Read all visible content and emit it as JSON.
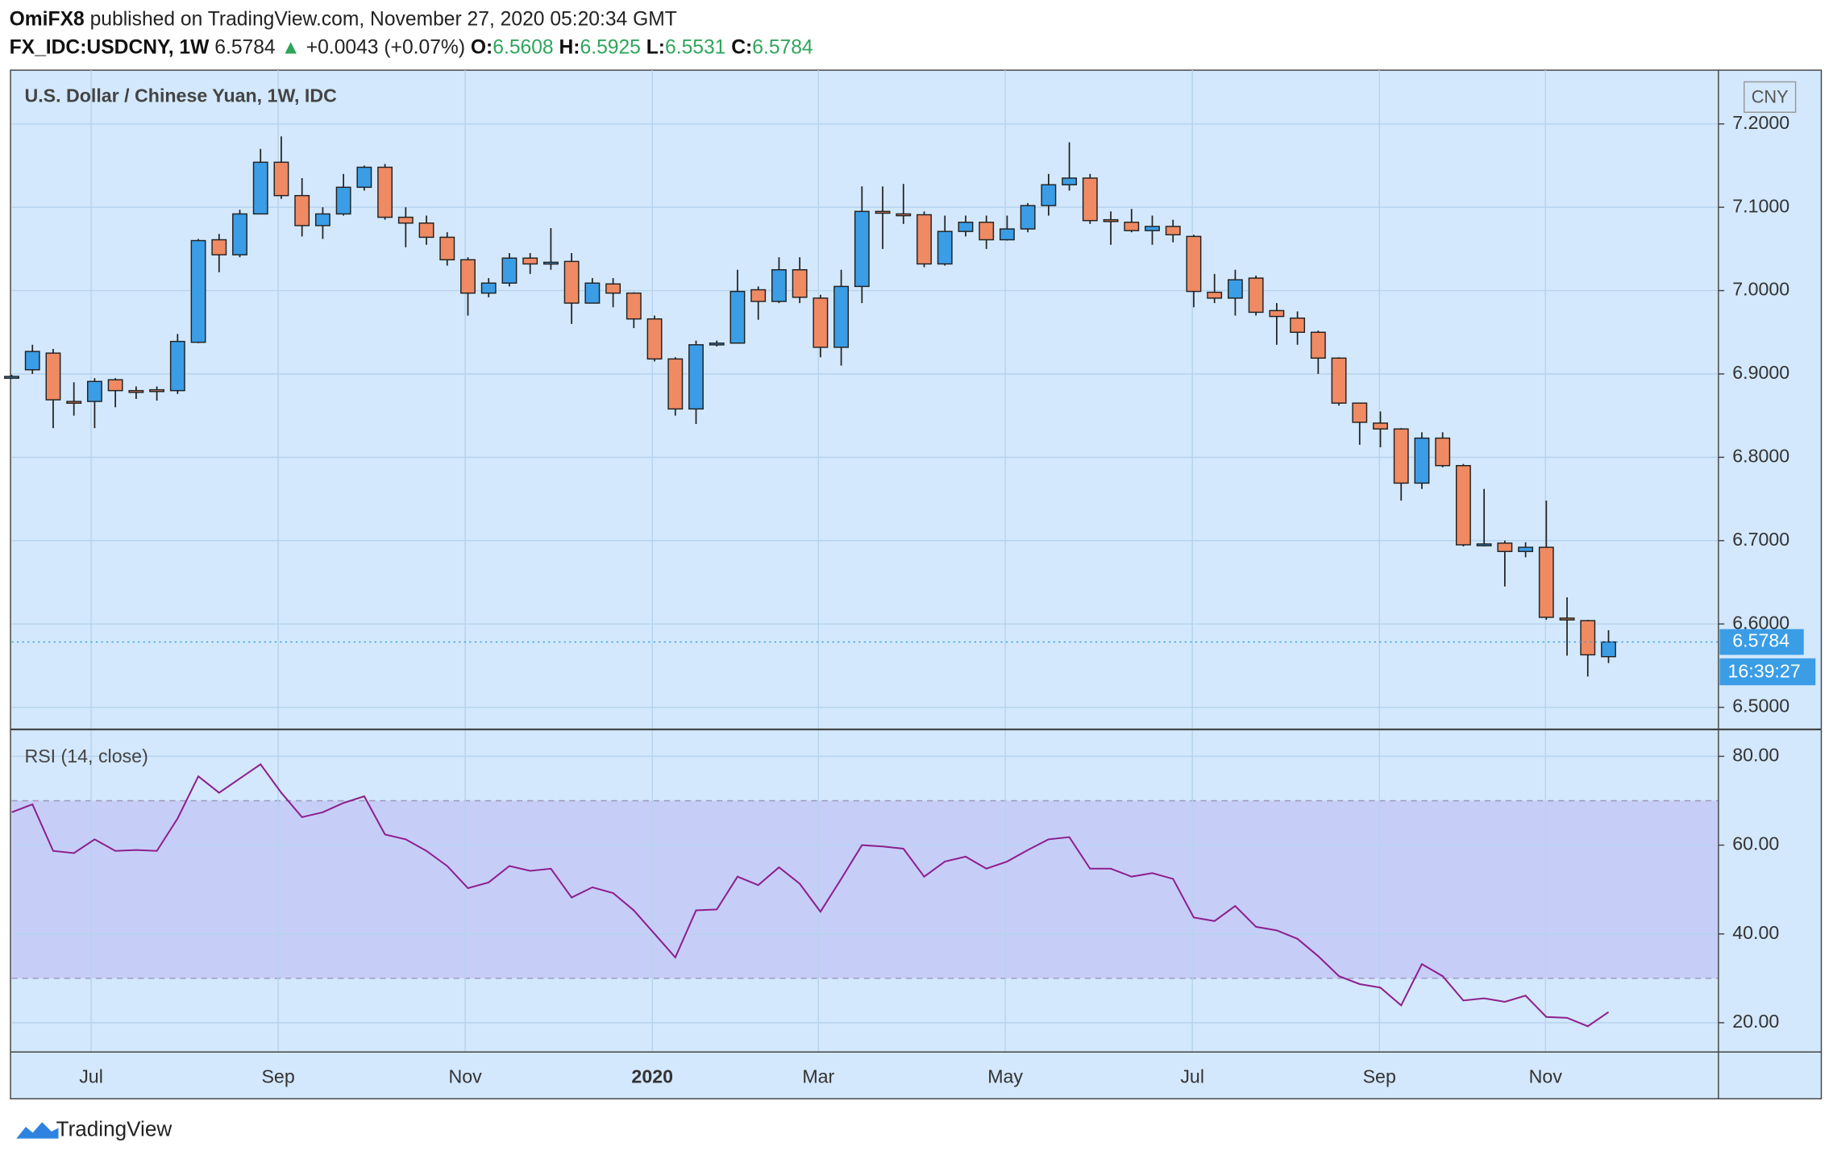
{
  "header": {
    "publisher": "OmiFX8",
    "published": "published on TradingView.com, November 27, 2020 05:20:34 GMT",
    "symbol": "FX_IDC:USDCNY, 1W",
    "arrow": "▲",
    "change": "+0.0043 (+0.07%)",
    "ohlc_labels": [
      "O:",
      "H:",
      "L:",
      "C:"
    ]
  },
  "footer": {
    "logo": "TradingView"
  },
  "chart_data": [
    {
      "type": "candlestick",
      "title": "U.S. Dollar / Chinese Yuan, 1W, IDC",
      "currency": "CNY",
      "countdown": "16:39:27",
      "up_color": "#3a9de6",
      "down_color": "#ef8a62",
      "grid": true,
      "open": [
        6.896,
        6.905,
        6.925,
        6.867,
        6.867,
        6.893,
        6.88,
        6.881,
        6.88,
        6.938,
        7.061,
        7.043,
        7.092,
        7.154,
        7.114,
        7.078,
        7.092,
        7.124,
        7.148,
        7.088,
        7.081,
        7.064,
        7.037,
        6.997,
        7.009,
        7.039,
        7.033,
        7.035,
        6.985,
        7.008,
        6.997,
        6.966,
        6.918,
        6.858,
        6.936,
        6.937,
        7.001,
        6.987,
        7.025,
        6.991,
        6.932,
        7.005,
        7.095,
        7.092,
        7.091,
        7.032,
        7.071,
        7.082,
        7.061,
        7.074,
        7.102,
        7.127,
        7.135,
        7.085,
        7.082,
        7.072,
        7.077,
        7.065,
        6.998,
        6.991,
        7.015,
        6.976,
        6.967,
        6.95,
        6.919,
        6.865,
        6.841,
        6.834,
        6.769,
        6.823,
        6.79,
        6.695,
        6.697,
        6.687,
        6.692,
        6.607,
        6.604,
        6.5608
      ],
      "high": [
        6.899,
        6.935,
        6.93,
        6.89,
        6.895,
        6.895,
        6.885,
        6.885,
        6.948,
        7.062,
        7.068,
        7.097,
        7.17,
        7.185,
        7.135,
        7.1,
        7.14,
        7.15,
        7.152,
        7.1,
        7.09,
        7.07,
        7.04,
        7.015,
        7.045,
        7.045,
        7.075,
        7.045,
        7.015,
        7.015,
        6.998,
        6.97,
        6.92,
        6.94,
        6.94,
        7.025,
        7.005,
        7.04,
        7.04,
        6.995,
        7.025,
        7.125,
        7.125,
        7.128,
        7.095,
        7.09,
        7.09,
        7.09,
        7.09,
        7.105,
        7.14,
        7.178,
        7.14,
        7.095,
        7.098,
        7.09,
        7.085,
        7.067,
        7.02,
        7.025,
        7.018,
        6.985,
        6.975,
        6.952,
        6.92,
        6.865,
        6.855,
        6.835,
        6.83,
        6.83,
        6.792,
        6.762,
        6.7,
        6.698,
        6.748,
        6.632,
        6.605,
        6.5925
      ],
      "low": [
        6.894,
        6.9,
        6.835,
        6.85,
        6.835,
        6.86,
        6.87,
        6.868,
        6.876,
        6.937,
        7.022,
        7.04,
        7.092,
        7.11,
        7.065,
        7.062,
        7.09,
        7.12,
        7.085,
        7.052,
        7.055,
        7.03,
        6.97,
        6.992,
        7.005,
        7.02,
        7.025,
        6.96,
        6.985,
        6.98,
        6.955,
        6.915,
        6.85,
        6.84,
        6.933,
        6.937,
        6.965,
        6.985,
        6.985,
        6.92,
        6.91,
        6.985,
        7.05,
        7.08,
        7.028,
        7.03,
        7.065,
        7.05,
        7.06,
        7.07,
        7.09,
        7.12,
        7.08,
        7.055,
        7.07,
        7.055,
        7.058,
        6.98,
        6.985,
        6.97,
        6.97,
        6.935,
        6.935,
        6.9,
        6.862,
        6.815,
        6.812,
        6.748,
        6.762,
        6.788,
        6.693,
        6.693,
        6.645,
        6.68,
        6.605,
        6.562,
        6.537,
        6.5531
      ],
      "close": [
        6.897,
        6.927,
        6.869,
        6.866,
        6.891,
        6.88,
        6.879,
        6.88,
        6.939,
        7.06,
        7.043,
        7.092,
        7.154,
        7.114,
        7.078,
        7.092,
        7.124,
        7.148,
        7.088,
        7.081,
        7.064,
        7.037,
        6.997,
        7.009,
        7.039,
        7.032,
        7.034,
        6.985,
        7.009,
        6.997,
        6.966,
        6.918,
        6.858,
        6.935,
        6.937,
        6.999,
        6.987,
        7.025,
        6.992,
        6.932,
        7.005,
        7.095,
        7.094,
        7.091,
        7.032,
        7.071,
        7.082,
        7.061,
        7.074,
        7.102,
        7.127,
        7.135,
        7.084,
        7.084,
        7.072,
        7.077,
        7.067,
        6.999,
        6.991,
        7.013,
        6.974,
        6.969,
        6.95,
        6.919,
        6.865,
        6.842,
        6.834,
        6.769,
        6.823,
        6.79,
        6.695,
        6.696,
        6.687,
        6.692,
        6.608,
        6.606,
        6.563,
        6.5784
      ],
      "ylim": [
        6.4749,
        7.2645
      ],
      "yticks": [
        {
          "value": 6.5,
          "label": "6.5000"
        },
        {
          "value": 6.6,
          "label": "6.6000"
        },
        {
          "value": 6.7,
          "label": "6.7000"
        },
        {
          "value": 6.8,
          "label": "6.8000"
        },
        {
          "value": 6.9,
          "label": "6.9000"
        },
        {
          "value": 7.0,
          "label": "7.0000"
        },
        {
          "value": 7.1,
          "label": "7.1000"
        },
        {
          "value": 7.2,
          "label": "7.2000"
        }
      ],
      "xlim": [
        0,
        82.3
      ],
      "xticks": [
        {
          "value": 3.83,
          "label": "Jul"
        },
        {
          "value": 12.85,
          "label": "Sep"
        },
        {
          "value": 21.87,
          "label": "Nov"
        },
        {
          "value": 30.89,
          "label": "2020"
        },
        {
          "value": 38.9,
          "label": "Mar"
        },
        {
          "value": 47.91,
          "label": "May"
        },
        {
          "value": 56.93,
          "label": "Jul"
        },
        {
          "value": 65.95,
          "label": "Sep"
        },
        {
          "value": 73.96,
          "label": "Nov"
        }
      ]
    },
    {
      "type": "line",
      "title": "RSI (14, close)",
      "color": "#8e1f8e",
      "band": [
        30,
        70
      ],
      "band_color": "#c3c9f7",
      "values": [
        67.4,
        69.2,
        58.7,
        58.2,
        61.3,
        58.7,
        58.9,
        58.7,
        66,
        75.5,
        71.8,
        75,
        78.2,
        71.8,
        66.3,
        67.4,
        69.5,
        71,
        62.4,
        61.3,
        58.7,
        55.3,
        50.3,
        51.6,
        55.3,
        54.2,
        54.7,
        48.2,
        50.5,
        49.2,
        45.3,
        40,
        34.7,
        45.3,
        45.5,
        52.9,
        51,
        55,
        51.3,
        45,
        52.4,
        60,
        59.7,
        59.2,
        52.9,
        56.3,
        57.4,
        54.7,
        56.3,
        58.9,
        61.3,
        61.8,
        54.7,
        54.7,
        52.9,
        53.7,
        52.4,
        43.7,
        42.9,
        46.3,
        41.6,
        40.8,
        38.9,
        35,
        30.5,
        28.7,
        27.9,
        23.9,
        33.2,
        30.5,
        25,
        25.5,
        24.7,
        26.1,
        21.3,
        21.1,
        19.2,
        22.4
      ],
      "ylim": [
        13.4,
        85.8
      ],
      "yticks": [
        {
          "value": 20,
          "label": "20.00"
        },
        {
          "value": 40,
          "label": "40.00"
        },
        {
          "value": 60,
          "label": "60.00"
        },
        {
          "value": 80,
          "label": "80.00"
        }
      ],
      "xlim": [
        0,
        82.3
      ]
    }
  ]
}
